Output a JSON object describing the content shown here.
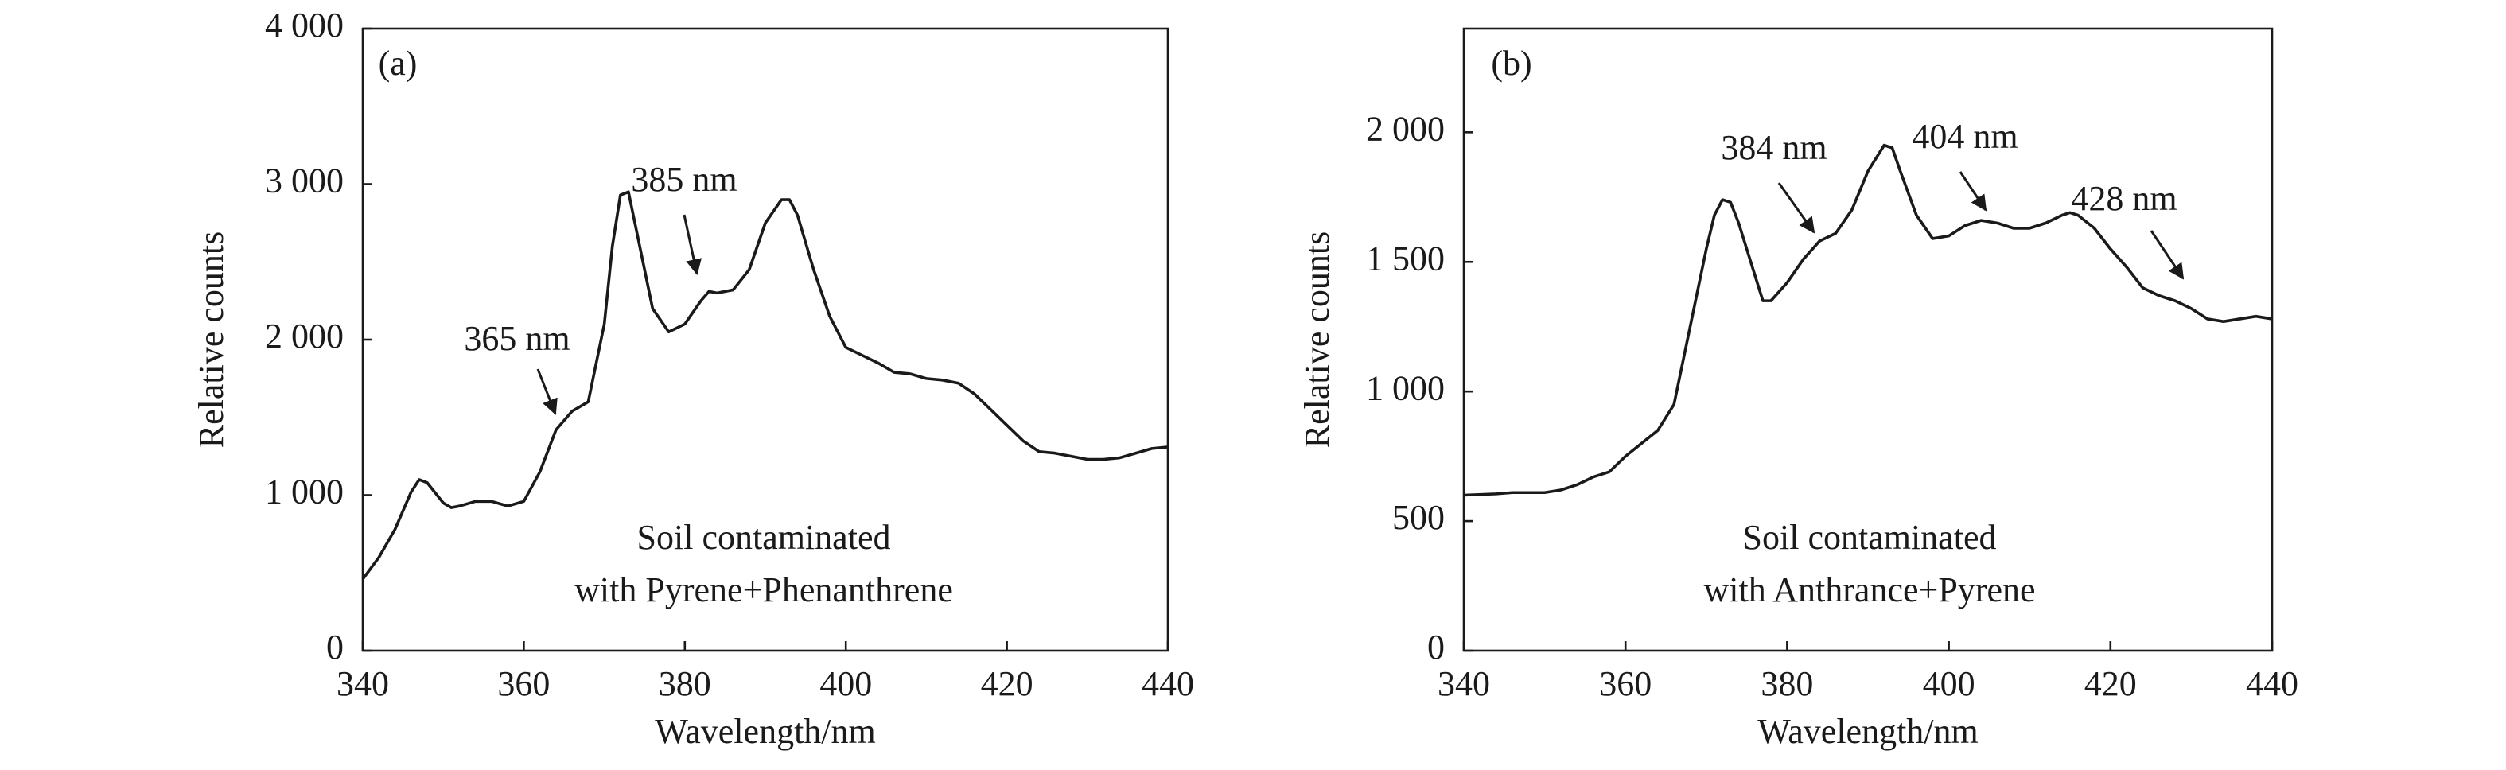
{
  "chart_data": [
    {
      "type": "line",
      "panel_label": "(a)",
      "x_label": "Wavelength/nm",
      "y_label": "Relative counts",
      "notes": [
        "Soil contaminated",
        "with Pyrene+Phenanthrene"
      ],
      "annotations": [
        "365 nm",
        "385 nm"
      ],
      "color": "#1a1a1a",
      "xlim": [
        340,
        440
      ],
      "xticks": [
        340,
        360,
        380,
        400,
        420,
        440
      ],
      "ylim": [
        0,
        4000
      ],
      "yticks": [
        0,
        {
          "value": 1000,
          "label": "1 000"
        },
        {
          "value": 2000,
          "label": "2 000"
        },
        {
          "value": 3000,
          "label": "3 000"
        },
        {
          "value": 4000,
          "label": "4 000"
        }
      ],
      "x": [
        340,
        342,
        344,
        346,
        347,
        348,
        350,
        351,
        352,
        354,
        356,
        358,
        360,
        362,
        364,
        366,
        368,
        370,
        371,
        372,
        373,
        374,
        376,
        378,
        380,
        382,
        383,
        384,
        386,
        388,
        390,
        392,
        393,
        394,
        396,
        398,
        400,
        402,
        404,
        406,
        408,
        410,
        412,
        414,
        416,
        418,
        420,
        422,
        424,
        426,
        428,
        430,
        432,
        434,
        436,
        438,
        440
      ],
      "values": [
        460,
        600,
        780,
        1020,
        1100,
        1080,
        950,
        920,
        930,
        960,
        960,
        930,
        960,
        1150,
        1420,
        1540,
        1600,
        2100,
        2600,
        2930,
        2950,
        2700,
        2200,
        2050,
        2100,
        2250,
        2310,
        2300,
        2320,
        2450,
        2750,
        2900,
        2900,
        2800,
        2450,
        2150,
        1950,
        1900,
        1850,
        1790,
        1780,
        1750,
        1740,
        1720,
        1650,
        1550,
        1450,
        1350,
        1280,
        1270,
        1250,
        1230,
        1230,
        1240,
        1270,
        1300,
        1310
      ]
    },
    {
      "type": "line",
      "panel_label": "(b)",
      "x_label": "Wavelength/nm",
      "y_label": "Relative counts",
      "notes": [
        "Soil contaminated",
        "with Anthrance+Pyrene"
      ],
      "annotations": [
        "384 nm",
        "404 nm",
        "428 nm"
      ],
      "color": "#1a1a1a",
      "xlim": [
        340,
        440
      ],
      "xticks": [
        340,
        360,
        380,
        400,
        420,
        440
      ],
      "ylim": [
        0,
        2400
      ],
      "yticks": [
        0,
        500,
        {
          "value": 1000,
          "label": "1 000"
        },
        {
          "value": 1500,
          "label": "1 500"
        },
        {
          "value": 2000,
          "label": "2 000"
        }
      ],
      "x": [
        340,
        344,
        346,
        350,
        352,
        354,
        356,
        358,
        360,
        362,
        364,
        366,
        368,
        370,
        371,
        372,
        373,
        374,
        376,
        377,
        378,
        380,
        382,
        384,
        386,
        388,
        390,
        392,
        393,
        394,
        396,
        398,
        400,
        402,
        404,
        406,
        408,
        410,
        412,
        414,
        415,
        416,
        418,
        420,
        422,
        424,
        426,
        428,
        430,
        432,
        434,
        436,
        438,
        440
      ],
      "values": [
        600,
        605,
        610,
        610,
        620,
        640,
        670,
        690,
        750,
        800,
        850,
        950,
        1250,
        1550,
        1680,
        1740,
        1730,
        1650,
        1450,
        1350,
        1350,
        1420,
        1510,
        1580,
        1610,
        1700,
        1850,
        1950,
        1940,
        1850,
        1680,
        1590,
        1600,
        1640,
        1660,
        1650,
        1630,
        1630,
        1650,
        1680,
        1690,
        1680,
        1630,
        1550,
        1480,
        1400,
        1370,
        1350,
        1320,
        1280,
        1270,
        1280,
        1290,
        1280
      ]
    }
  ]
}
